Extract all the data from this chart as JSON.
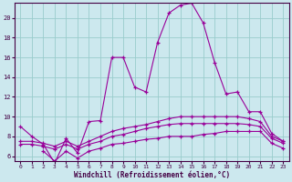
{
  "xlabel": "Windchill (Refroidissement éolien,°C)",
  "background_color": "#cce8ee",
  "line_color": "#990099",
  "grid_color": "#99cccc",
  "x_ticks": [
    0,
    1,
    2,
    3,
    4,
    5,
    6,
    7,
    8,
    9,
    10,
    11,
    12,
    13,
    14,
    15,
    16,
    17,
    18,
    19,
    20,
    21,
    22,
    23
  ],
  "y_ticks": [
    6,
    8,
    10,
    12,
    14,
    16,
    18,
    20
  ],
  "ylim": [
    5.5,
    21.5
  ],
  "xlim": [
    -0.5,
    23.5
  ],
  "line1_x": [
    0,
    1,
    2,
    3,
    4,
    5,
    6,
    7,
    8,
    9,
    10,
    11,
    12,
    13,
    14,
    15,
    16,
    17,
    18,
    19,
    20,
    21,
    22,
    23
  ],
  "line1_y": [
    9.0,
    8.0,
    7.2,
    5.3,
    7.8,
    6.3,
    9.5,
    9.6,
    16.0,
    16.0,
    13.0,
    12.5,
    17.5,
    20.5,
    21.3,
    21.5,
    19.5,
    15.5,
    12.3,
    12.5,
    10.5,
    10.5,
    8.3,
    7.5
  ],
  "line2_x": [
    0,
    1,
    2,
    3,
    4,
    5,
    6,
    7,
    8,
    9,
    10,
    11,
    12,
    13,
    14,
    15,
    16,
    17,
    18,
    19,
    20,
    21,
    22,
    23
  ],
  "line2_y": [
    7.5,
    7.5,
    7.3,
    7.0,
    7.5,
    7.0,
    7.5,
    8.0,
    8.5,
    8.8,
    9.0,
    9.2,
    9.5,
    9.8,
    10.0,
    10.0,
    10.0,
    10.0,
    10.0,
    10.0,
    9.8,
    9.5,
    8.0,
    7.5
  ],
  "line3_x": [
    0,
    1,
    2,
    3,
    4,
    5,
    6,
    7,
    8,
    9,
    10,
    11,
    12,
    13,
    14,
    15,
    16,
    17,
    18,
    19,
    20,
    21,
    22,
    23
  ],
  "line3_y": [
    7.2,
    7.2,
    7.0,
    6.7,
    7.2,
    6.7,
    7.2,
    7.5,
    8.0,
    8.2,
    8.5,
    8.8,
    9.0,
    9.2,
    9.3,
    9.3,
    9.3,
    9.3,
    9.3,
    9.3,
    9.2,
    9.0,
    7.8,
    7.3
  ],
  "line4_x": [
    2,
    3,
    4,
    5,
    6,
    7,
    8,
    9,
    10,
    11,
    12,
    13,
    14,
    15,
    16,
    17,
    18,
    19,
    20,
    21,
    22,
    23
  ],
  "line4_y": [
    6.5,
    5.5,
    6.5,
    5.8,
    6.5,
    6.8,
    7.2,
    7.3,
    7.5,
    7.7,
    7.8,
    8.0,
    8.0,
    8.0,
    8.2,
    8.3,
    8.5,
    8.5,
    8.5,
    8.5,
    7.3,
    6.8
  ]
}
